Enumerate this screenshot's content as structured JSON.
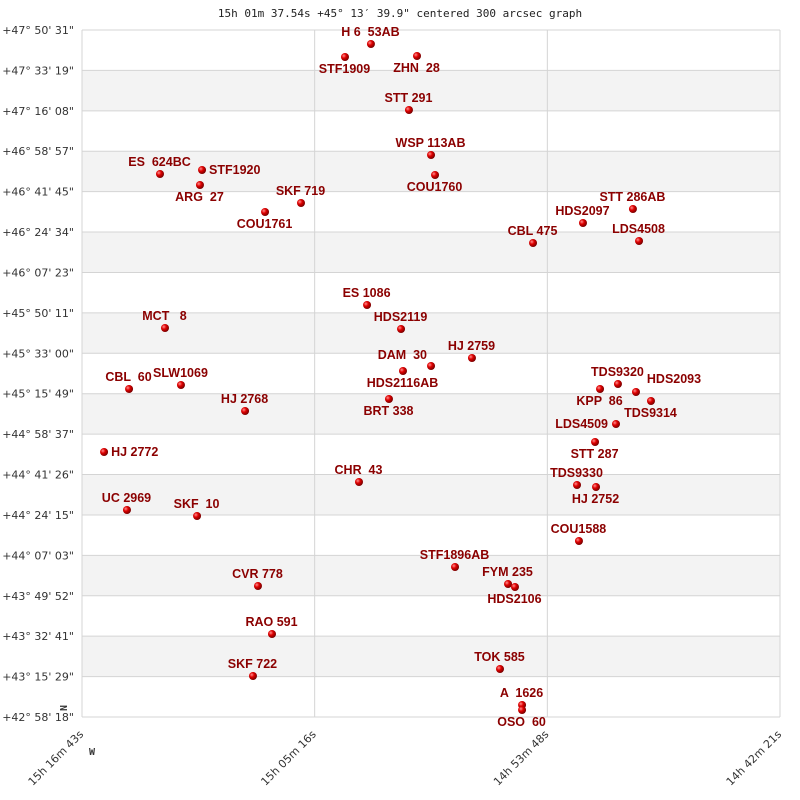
{
  "chart_data": {
    "type": "scatter",
    "title": "15h 01m 37.54s +45° 13′ 39.9\" centered 300 arcsec graph",
    "x_axis": {
      "unit": "RA (hours)",
      "range": [
        15.27861,
        14.70583
      ],
      "tick_labels": [
        "15h 16m 43s",
        "15h 05m 16s",
        "14h 53m 48s",
        "14h 42m 21s"
      ]
    },
    "y_axis": {
      "unit": "Dec (degrees)",
      "range": [
        42.97167,
        47.84194
      ],
      "tick_labels": [
        "+47° 50' 31\"",
        "+47° 33' 19\"",
        "+47° 16' 08\"",
        "+46° 58' 57\"",
        "+46° 41' 45\"",
        "+46° 24' 34\"",
        "+46° 07' 23\"",
        "+45° 50' 11\"",
        "+45° 33' 00\"",
        "+45° 15' 49\"",
        "+44° 58' 37\"",
        "+44° 41' 26\"",
        "+44° 24' 15\"",
        "+44° 07' 03\"",
        "+43° 49' 52\"",
        "+43° 32' 41\"",
        "+43° 15' 29\"",
        "+42° 58' 18\""
      ]
    },
    "grid": true,
    "compass": {
      "north": "N",
      "west": "W"
    },
    "colors": {
      "label": "#8b0000",
      "marker": "#e00000",
      "band": "#f3f3f3",
      "grid": "#d4d4d4"
    },
    "points": [
      {
        "name": "STF1909",
        "ra": 15.0628,
        "dec": 47.6506
      },
      {
        "name": "H 6  53AB",
        "ra": 15.0415,
        "dec": 47.7427
      },
      {
        "name": "ZHN  28",
        "ra": 15.0037,
        "dec": 47.6577
      },
      {
        "name": "STT 291",
        "ra": 15.0103,
        "dec": 47.2748
      },
      {
        "name": "WSP 113AB",
        "ra": 14.9922,
        "dec": 46.9558
      },
      {
        "name": "COU1760",
        "ra": 14.9889,
        "dec": 46.814
      },
      {
        "name": "ES  624BC",
        "ra": 15.2146,
        "dec": 46.8211
      },
      {
        "name": "STF1920",
        "ra": 15.1801,
        "dec": 46.8495
      },
      {
        "name": "ARG  27",
        "ra": 15.1818,
        "dec": 46.7432
      },
      {
        "name": "SKF 719",
        "ra": 15.0989,
        "dec": 46.6155
      },
      {
        "name": "COU1761",
        "ra": 15.1284,
        "dec": 46.5517
      },
      {
        "name": "STT 286AB",
        "ra": 14.8265,
        "dec": 46.573
      },
      {
        "name": "HDS2097",
        "ra": 14.8675,
        "dec": 46.4738
      },
      {
        "name": "LDS4508",
        "ra": 14.8215,
        "dec": 46.3462
      },
      {
        "name": "CBL 475",
        "ra": 14.9085,
        "dec": 46.332
      },
      {
        "name": "ES 1086",
        "ra": 15.0447,
        "dec": 45.8925
      },
      {
        "name": "MCT   8",
        "ra": 15.2105,
        "dec": 45.7294
      },
      {
        "name": "HDS2119",
        "ra": 15.0168,
        "dec": 45.7223
      },
      {
        "name": "HJ 2759",
        "ra": 14.9586,
        "dec": 45.5167
      },
      {
        "name": "DAM  30",
        "ra": 14.9922,
        "dec": 45.46
      },
      {
        "name": "HDS2116AB",
        "ra": 15.0152,
        "dec": 45.4246
      },
      {
        "name": "CBL  60",
        "ra": 15.24,
        "dec": 45.297
      },
      {
        "name": "SLW1069",
        "ra": 15.1974,
        "dec": 45.3253
      },
      {
        "name": "BRT 338",
        "ra": 15.0267,
        "dec": 45.2261
      },
      {
        "name": "HJ 2768",
        "ra": 15.1448,
        "dec": 45.141
      },
      {
        "name": "KPP  86",
        "ra": 14.8535,
        "dec": 45.297
      },
      {
        "name": "TDS9320",
        "ra": 14.8388,
        "dec": 45.3324
      },
      {
        "name": "HDS2093",
        "ra": 14.824,
        "dec": 45.2757
      },
      {
        "name": "TDS9314",
        "ra": 14.8117,
        "dec": 45.2119
      },
      {
        "name": "LDS4509",
        "ra": 14.8404,
        "dec": 45.0488
      },
      {
        "name": "STT 287",
        "ra": 14.8576,
        "dec": 44.9212
      },
      {
        "name": "HJ 2772",
        "ra": 15.2605,
        "dec": 44.8503
      },
      {
        "name": "TDS9330",
        "ra": 14.8724,
        "dec": 44.6164
      },
      {
        "name": "HJ 2752",
        "ra": 14.8568,
        "dec": 44.6022
      },
      {
        "name": "CHR  43",
        "ra": 15.0513,
        "dec": 44.6377
      },
      {
        "name": "UC 2969",
        "ra": 15.2417,
        "dec": 44.4392
      },
      {
        "name": "SKF  10",
        "ra": 15.1842,
        "dec": 44.3966
      },
      {
        "name": "COU1588",
        "ra": 14.8708,
        "dec": 44.2194
      },
      {
        "name": "STF1896AB",
        "ra": 14.9725,
        "dec": 44.0351
      },
      {
        "name": "FYM 235",
        "ra": 14.929,
        "dec": 43.9146
      },
      {
        "name": "HDS2106",
        "ra": 14.9233,
        "dec": 43.8933
      },
      {
        "name": "CVR 778",
        "ra": 15.1342,
        "dec": 43.9004
      },
      {
        "name": "RAO 591",
        "ra": 15.1227,
        "dec": 43.5601
      },
      {
        "name": "SKF 722",
        "ra": 15.1383,
        "dec": 43.2624
      },
      {
        "name": "TOK 585",
        "ra": 14.9356,
        "dec": 43.312
      },
      {
        "name": "A  1626",
        "ra": 14.9175,
        "dec": 43.0568
      },
      {
        "name": "OSO  60",
        "ra": 14.9175,
        "dec": 43.0213
      }
    ]
  }
}
